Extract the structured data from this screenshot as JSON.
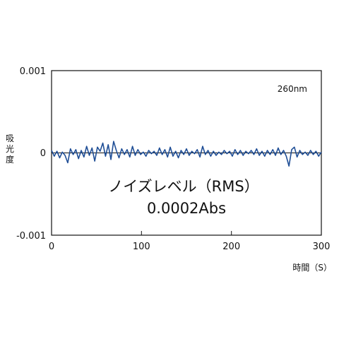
{
  "chart_data": {
    "type": "line",
    "title": "",
    "xlabel": "時間（S）",
    "ylabel": "吸光度",
    "xlim": [
      0,
      300
    ],
    "ylim": [
      -0.001,
      0.001
    ],
    "x_ticks": [
      "0",
      "100",
      "200",
      "300"
    ],
    "y_ticks": [
      "0.001",
      "0",
      "-0.001"
    ],
    "wavelength_label": "260nm",
    "annotation": [
      "ノイズレベル（RMS）",
      "0.0002Abs"
    ],
    "grid": false,
    "series": [
      {
        "color": "#1f4e96",
        "x": [
          0,
          3,
          6,
          9,
          12,
          15,
          18,
          21,
          24,
          27,
          30,
          33,
          36,
          39,
          42,
          45,
          48,
          51,
          54,
          57,
          60,
          63,
          66,
          69,
          72,
          75,
          78,
          81,
          84,
          87,
          90,
          93,
          96,
          99,
          102,
          105,
          108,
          111,
          114,
          117,
          120,
          123,
          126,
          129,
          132,
          135,
          138,
          141,
          144,
          147,
          150,
          153,
          156,
          159,
          162,
          165,
          168,
          171,
          174,
          177,
          180,
          183,
          186,
          189,
          192,
          195,
          198,
          201,
          204,
          207,
          210,
          213,
          216,
          219,
          222,
          225,
          228,
          231,
          234,
          237,
          240,
          243,
          246,
          249,
          252,
          255,
          258,
          261,
          264,
          267,
          270,
          273,
          276,
          279,
          282,
          285,
          288,
          291,
          294,
          297,
          300
        ],
        "values": [
          3e-05,
          -4e-05,
          2e-05,
          -6e-05,
          1e-05,
          -3e-05,
          -0.00012,
          5e-05,
          -2e-05,
          4e-05,
          -7e-05,
          3e-05,
          -5e-05,
          8e-05,
          -3e-05,
          6e-05,
          -0.0001,
          7e-05,
          2e-05,
          0.00012,
          -4e-05,
          0.0001,
          -8e-05,
          0.00014,
          3e-05,
          -6e-05,
          5e-05,
          -2e-05,
          4e-05,
          -5e-05,
          8e-05,
          -3e-05,
          4e-05,
          -2e-05,
          1e-05,
          -4e-05,
          3e-05,
          -1e-05,
          2e-05,
          -3e-05,
          6e-05,
          -2e-05,
          4e-05,
          -5e-05,
          7e-05,
          -4e-05,
          2e-05,
          -6e-05,
          3e-05,
          -2e-05,
          5e-05,
          -3e-05,
          2e-05,
          -1e-05,
          4e-05,
          -5e-05,
          8e-05,
          -2e-05,
          3e-05,
          -4e-05,
          2e-05,
          -3e-05,
          1e-05,
          -2e-05,
          3e-05,
          -1e-05,
          2e-05,
          -4e-05,
          4e-05,
          -2e-05,
          3e-05,
          -3e-05,
          2e-05,
          -1e-05,
          3e-05,
          -2e-05,
          5e-05,
          -3e-05,
          2e-05,
          -4e-05,
          3e-05,
          -2e-05,
          4e-05,
          -3e-05,
          6e-05,
          -2e-05,
          3e-05,
          -4e-05,
          -0.00016,
          4e-05,
          7e-05,
          -5e-05,
          3e-05,
          -2e-05,
          1e-05,
          -3e-05,
          3e-05,
          -2e-05,
          2e-05,
          -4e-05,
          1e-05
        ]
      }
    ]
  }
}
